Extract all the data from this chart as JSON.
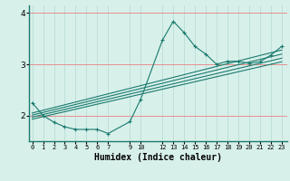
{
  "xlabel": "Humidex (Indice chaleur)",
  "bg_color": "#d8f0ea",
  "line_color": "#1a7a6e",
  "hgrid_color": "#e89090",
  "vgrid_color": "#b8ddd6",
  "xlim": [
    -0.3,
    23.5
  ],
  "ylim": [
    1.5,
    4.15
  ],
  "yticks": [
    2,
    3,
    4
  ],
  "x_positions": [
    0,
    1,
    2,
    3,
    4,
    5,
    6,
    7,
    9,
    10,
    12,
    13,
    14,
    15,
    16,
    17,
    18,
    19,
    20,
    21,
    22,
    23
  ],
  "series1_x": [
    0,
    1,
    2,
    3,
    4,
    5,
    6,
    7,
    9,
    10,
    12,
    13,
    14,
    15,
    16,
    17,
    18,
    19,
    20,
    21,
    22,
    23
  ],
  "series1_y": [
    2.25,
    2.0,
    1.87,
    1.78,
    1.73,
    1.73,
    1.73,
    1.65,
    1.88,
    2.32,
    3.47,
    3.84,
    3.62,
    3.35,
    3.2,
    3.0,
    3.06,
    3.06,
    3.02,
    3.05,
    3.18,
    3.35
  ],
  "linear_lines": [
    {
      "x": [
        0,
        23
      ],
      "y": [
        1.93,
        3.05
      ]
    },
    {
      "x": [
        0,
        23
      ],
      "y": [
        1.97,
        3.12
      ]
    },
    {
      "x": [
        0,
        23
      ],
      "y": [
        2.01,
        3.2
      ]
    },
    {
      "x": [
        0,
        23
      ],
      "y": [
        2.05,
        3.28
      ]
    }
  ]
}
